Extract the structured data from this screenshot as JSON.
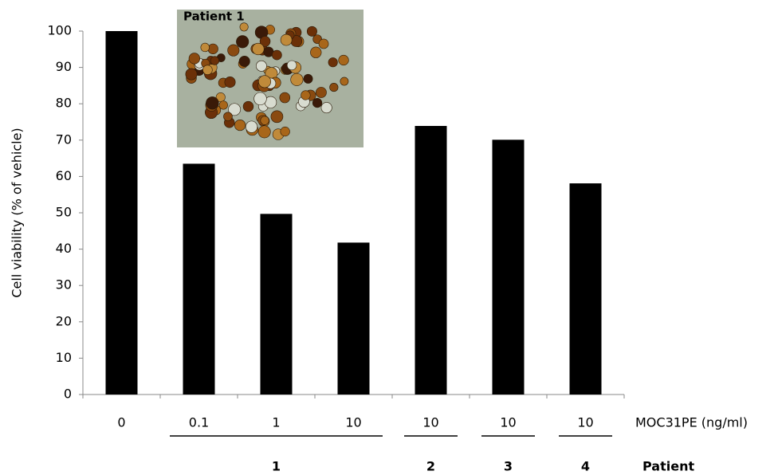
{
  "chart_data": {
    "type": "bar",
    "ylabel": "Cell viability (% of vehicle)",
    "x_row_label": "MOC31PE (ng/ml)",
    "group_row_label": "Patient",
    "inset_label": "Patient 1",
    "categories": [
      "0",
      "0.1",
      "1",
      "10",
      "10",
      "10",
      "10"
    ],
    "groups": [
      null,
      "1",
      "1",
      "1",
      "2",
      "3",
      "4"
    ],
    "values": [
      100,
      63.5,
      49.7,
      41.8,
      73.9,
      70.1,
      58.1
    ],
    "color": "#000000",
    "ylim": [
      0,
      100
    ],
    "yticks": [
      0,
      10,
      20,
      30,
      40,
      50,
      60,
      70,
      80,
      90,
      100
    ]
  }
}
